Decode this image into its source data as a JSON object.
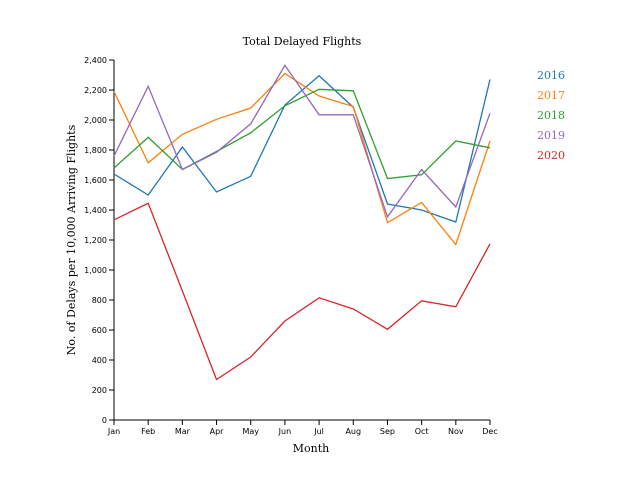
{
  "chart_data": {
    "type": "line",
    "title": "Total Delayed Flights",
    "xlabel": "Month",
    "ylabel": "No. of Delays per 10,000 Arriving Flights",
    "categories": [
      "Jan",
      "Feb",
      "Mar",
      "Apr",
      "May",
      "Jun",
      "Jul",
      "Aug",
      "Sep",
      "Oct",
      "Nov",
      "Dec"
    ],
    "ylim": [
      0,
      2400
    ],
    "yticks": [
      0,
      200,
      400,
      600,
      800,
      1000,
      1200,
      1400,
      1600,
      1800,
      2000,
      2200,
      2400
    ],
    "ytick_labels": [
      "0",
      "200",
      "400",
      "600",
      "800",
      "1,000",
      "1,200",
      "1,400",
      "1,600",
      "1,800",
      "2,000",
      "2,200",
      "2,400"
    ],
    "grid": false,
    "legend_position": "right",
    "series": [
      {
        "name": "2016",
        "color": "#1f77b4",
        "values": [
          1640,
          1500,
          1820,
          1520,
          1625,
          2100,
          2295,
          2085,
          1440,
          1400,
          1320,
          2270
        ]
      },
      {
        "name": "2017",
        "color": "#ff7f0e",
        "values": [
          2190,
          1715,
          1905,
          2005,
          2080,
          2310,
          2160,
          2090,
          1315,
          1450,
          1170,
          1860
        ]
      },
      {
        "name": "2018",
        "color": "#2ca02c",
        "values": [
          1680,
          1885,
          1670,
          1790,
          1915,
          2095,
          2205,
          2195,
          1610,
          1635,
          1860,
          1815
        ]
      },
      {
        "name": "2019",
        "color": "#9467bd",
        "values": [
          1760,
          2225,
          1670,
          1785,
          1975,
          2365,
          2035,
          2035,
          1355,
          1670,
          1420,
          2045
        ]
      },
      {
        "name": "2020",
        "color": "#d62728",
        "values": [
          1335,
          1445,
          860,
          270,
          420,
          660,
          815,
          740,
          605,
          795,
          755,
          1175
        ]
      }
    ]
  }
}
